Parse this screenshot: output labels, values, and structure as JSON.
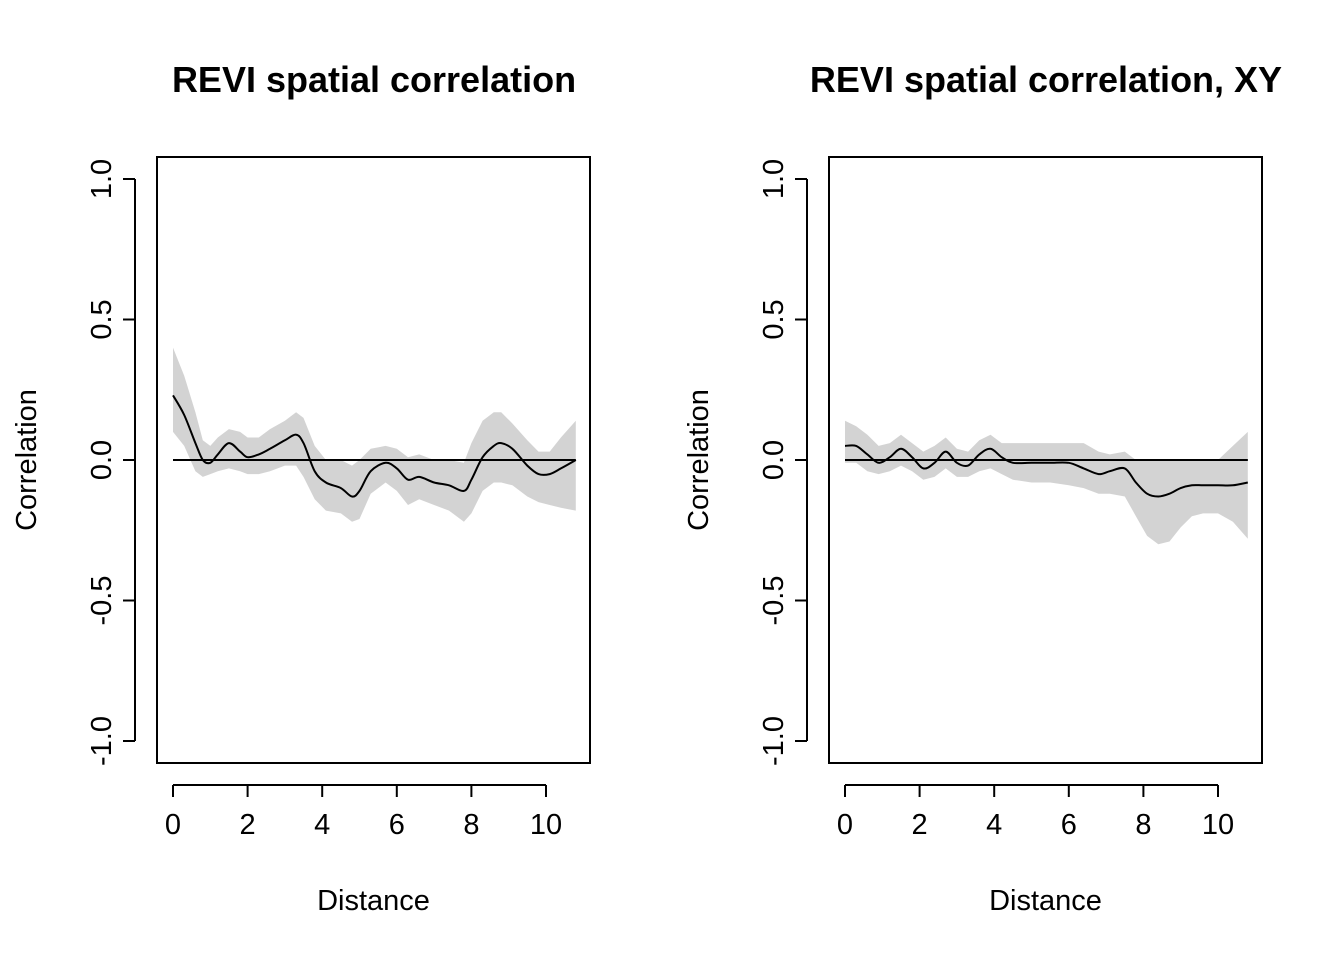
{
  "chart_data": [
    {
      "type": "line",
      "title": "REVI spatial correlation",
      "xlabel": "Distance",
      "ylabel": "Correlation",
      "xlim": [
        0,
        10.8
      ],
      "ylim": [
        -1.0,
        1.0
      ],
      "xticks": [
        "0",
        "2",
        "4",
        "6",
        "8",
        "10"
      ],
      "yticks": [
        "-1.0",
        "-0.5",
        "0.0",
        "0.5",
        "1.0"
      ],
      "reference_line": 0,
      "grid": false,
      "series": [
        {
          "x": [
            0,
            0.3,
            0.6,
            0.8,
            1.0,
            1.2,
            1.5,
            1.8,
            2.0,
            2.3,
            2.6,
            3.0,
            3.3,
            3.5,
            3.8,
            4.1,
            4.5,
            4.8,
            5.0,
            5.3,
            5.7,
            6.0,
            6.3,
            6.6,
            7.0,
            7.4,
            7.8,
            8.0,
            8.3,
            8.6,
            8.8,
            9.1,
            9.5,
            9.8,
            10.1,
            10.4,
            10.8
          ],
          "y": [
            0.23,
            0.16,
            0.06,
            0.0,
            -0.01,
            0.02,
            0.06,
            0.03,
            0.01,
            0.02,
            0.04,
            0.07,
            0.09,
            0.06,
            -0.04,
            -0.08,
            -0.1,
            -0.13,
            -0.11,
            -0.04,
            -0.01,
            -0.03,
            -0.07,
            -0.06,
            -0.08,
            -0.09,
            -0.11,
            -0.07,
            0.01,
            0.05,
            0.06,
            0.04,
            -0.02,
            -0.05,
            -0.05,
            -0.03,
            0.0
          ],
          "lower": [
            0.1,
            0.05,
            -0.04,
            -0.06,
            -0.05,
            -0.04,
            -0.03,
            -0.04,
            -0.05,
            -0.05,
            -0.04,
            -0.02,
            -0.02,
            -0.06,
            -0.14,
            -0.18,
            -0.19,
            -0.22,
            -0.21,
            -0.12,
            -0.08,
            -0.11,
            -0.16,
            -0.14,
            -0.16,
            -0.18,
            -0.22,
            -0.19,
            -0.11,
            -0.08,
            -0.08,
            -0.09,
            -0.13,
            -0.15,
            -0.16,
            -0.17,
            -0.18
          ],
          "upper": [
            0.4,
            0.3,
            0.17,
            0.07,
            0.05,
            0.08,
            0.11,
            0.1,
            0.08,
            0.08,
            0.11,
            0.14,
            0.17,
            0.15,
            0.05,
            0.0,
            0.0,
            -0.02,
            0.0,
            0.04,
            0.05,
            0.04,
            0.01,
            0.02,
            0.0,
            0.0,
            -0.01,
            0.06,
            0.14,
            0.17,
            0.17,
            0.13,
            0.07,
            0.03,
            0.03,
            0.08,
            0.14
          ]
        }
      ]
    },
    {
      "type": "line",
      "title": "REVI spatial correlation, XY",
      "xlabel": "Distance",
      "ylabel": "Correlation",
      "xlim": [
        0,
        10.8
      ],
      "ylim": [
        -1.0,
        1.0
      ],
      "xticks": [
        "0",
        "2",
        "4",
        "6",
        "8",
        "10"
      ],
      "yticks": [
        "-1.0",
        "-0.5",
        "0.0",
        "0.5",
        "1.0"
      ],
      "reference_line": 0,
      "grid": false,
      "series": [
        {
          "x": [
            0,
            0.3,
            0.6,
            0.9,
            1.2,
            1.5,
            1.8,
            2.1,
            2.4,
            2.7,
            3.0,
            3.3,
            3.6,
            3.9,
            4.2,
            4.5,
            5.0,
            5.5,
            6.0,
            6.4,
            6.8,
            7.1,
            7.5,
            7.8,
            8.1,
            8.4,
            8.7,
            9.0,
            9.3,
            9.6,
            10.0,
            10.4,
            10.8
          ],
          "y": [
            0.05,
            0.05,
            0.02,
            -0.01,
            0.01,
            0.04,
            0.01,
            -0.03,
            -0.01,
            0.03,
            -0.01,
            -0.02,
            0.02,
            0.04,
            0.01,
            -0.01,
            -0.01,
            -0.01,
            -0.01,
            -0.03,
            -0.05,
            -0.04,
            -0.03,
            -0.08,
            -0.12,
            -0.13,
            -0.12,
            -0.1,
            -0.09,
            -0.09,
            -0.09,
            -0.09,
            -0.08
          ],
          "lower": [
            -0.01,
            -0.01,
            -0.04,
            -0.05,
            -0.04,
            -0.02,
            -0.04,
            -0.07,
            -0.06,
            -0.03,
            -0.06,
            -0.06,
            -0.04,
            -0.03,
            -0.05,
            -0.07,
            -0.08,
            -0.08,
            -0.09,
            -0.1,
            -0.12,
            -0.12,
            -0.13,
            -0.2,
            -0.27,
            -0.3,
            -0.29,
            -0.24,
            -0.2,
            -0.19,
            -0.19,
            -0.22,
            -0.28
          ],
          "upper": [
            0.14,
            0.12,
            0.09,
            0.05,
            0.06,
            0.09,
            0.06,
            0.03,
            0.05,
            0.08,
            0.04,
            0.03,
            0.07,
            0.09,
            0.06,
            0.06,
            0.06,
            0.06,
            0.06,
            0.06,
            0.03,
            0.02,
            0.03,
            0.0,
            0.0,
            0.0,
            0.0,
            0.0,
            0.0,
            0.0,
            0.0,
            0.05,
            0.1
          ]
        }
      ]
    }
  ]
}
